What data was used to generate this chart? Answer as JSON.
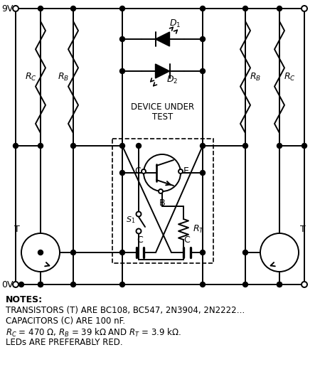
{
  "bg_color": "#ffffff",
  "line_color": "#000000",
  "lw": 1.4,
  "note1": "TRANSISTORS (T) ARE BC108, BC547, 2N3904, 2N2222…",
  "note2": "CAPACITORS (C) ARE 100 nF.",
  "note4": "LEDs ARE PREFERABLY RED."
}
